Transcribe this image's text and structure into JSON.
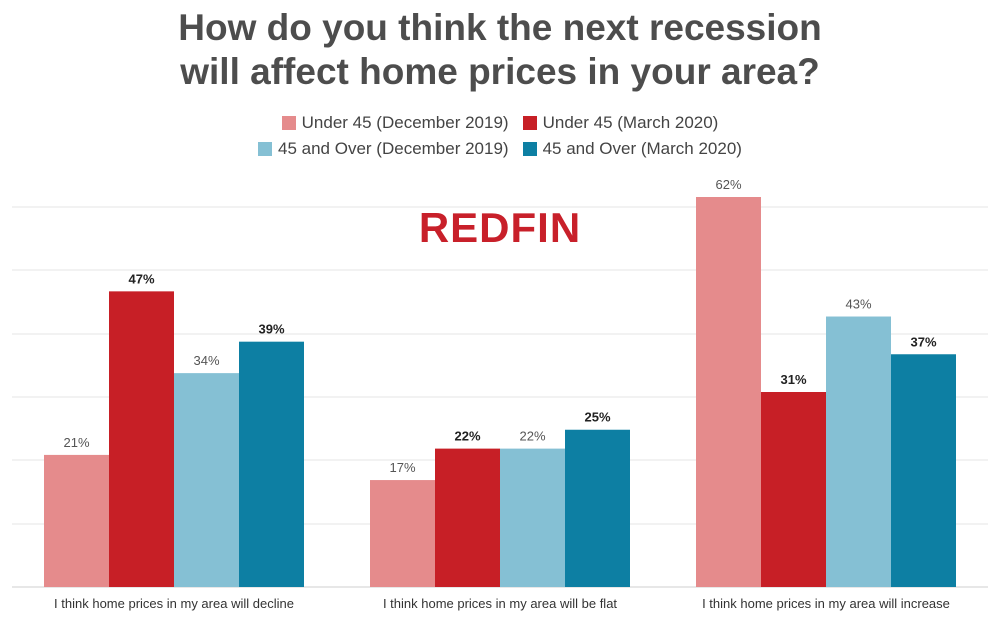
{
  "chart_data": {
    "type": "bar",
    "title_lines": [
      "How do you think the next recession",
      "will affect home prices in your area?"
    ],
    "categories": [
      "I think home prices in my area will decline",
      "I think home prices in my area will be flat",
      "I think home prices in my area will increase"
    ],
    "series": [
      {
        "name": "Under 45 (December 2019)",
        "color": "#e58b8c",
        "label_bold": false,
        "values": [
          21,
          17,
          62
        ]
      },
      {
        "name": "Under 45 (March 2020)",
        "color": "#c71f26",
        "label_bold": true,
        "values": [
          47,
          22,
          31
        ]
      },
      {
        "name": "45 and Over (December 2019)",
        "color": "#85c0d4",
        "label_bold": false,
        "values": [
          34,
          22,
          43
        ]
      },
      {
        "name": "45 and Over (March 2020)",
        "color": "#0d7fa3",
        "label_bold": true,
        "values": [
          39,
          25,
          37
        ]
      }
    ],
    "value_suffix": "%",
    "ylim": [
      0,
      62
    ],
    "grid": true,
    "legend_position": "top-center"
  },
  "logo_text": "REDFIN"
}
